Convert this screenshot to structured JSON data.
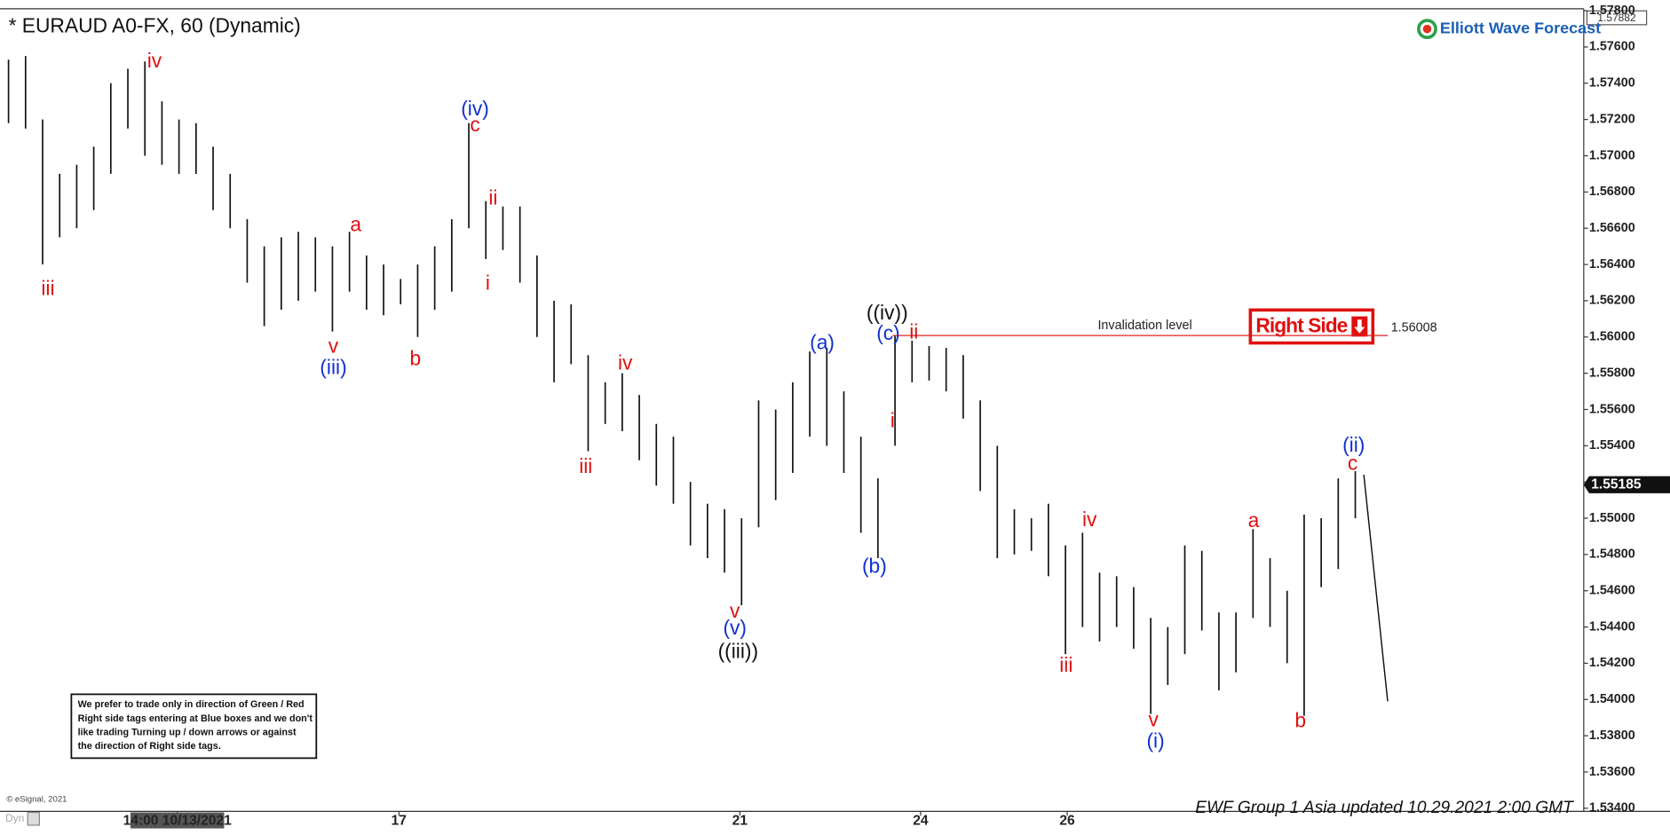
{
  "chart_data": {
    "type": "ohlc",
    "title": "* EURAUD A0-FX, 60 (Dynamic)",
    "logo": "Elliott Wave Forecast",
    "top_price_label": "1.57882",
    "ohlc": {
      "color": "#111111",
      "x": [
        0,
        1,
        2,
        3,
        4,
        5,
        6,
        7,
        8,
        9,
        10,
        11,
        12,
        13,
        14,
        15,
        16,
        17,
        18,
        19,
        20,
        21,
        22,
        23,
        24,
        25,
        26,
        27,
        28,
        29,
        30,
        31,
        32,
        33,
        34,
        35,
        36,
        37,
        38,
        39,
        40,
        41,
        42,
        43,
        44,
        45,
        46,
        47,
        48,
        49,
        50,
        51,
        52,
        53,
        54,
        55,
        56,
        57,
        58,
        59,
        60,
        61,
        62,
        63,
        64,
        65,
        66,
        67,
        68,
        69,
        70,
        71,
        72,
        73,
        74,
        75,
        76,
        77,
        78,
        79
      ],
      "high": [
        1.5753,
        1.5755,
        1.572,
        1.569,
        1.5695,
        1.5705,
        1.574,
        1.5748,
        1.5752,
        1.573,
        1.572,
        1.5718,
        1.5705,
        1.569,
        1.5665,
        1.565,
        1.5655,
        1.5658,
        1.5655,
        1.565,
        1.5658,
        1.5645,
        1.564,
        1.5632,
        1.564,
        1.565,
        1.5665,
        1.5718,
        1.5675,
        1.5672,
        1.5672,
        1.5645,
        1.562,
        1.5618,
        1.559,
        1.5575,
        1.558,
        1.5568,
        1.5552,
        1.5545,
        1.552,
        1.5508,
        1.5505,
        1.55,
        1.5565,
        1.556,
        1.5575,
        1.5592,
        1.5594,
        1.557,
        1.5545,
        1.5522,
        1.5601,
        1.5598,
        1.5595,
        1.5594,
        1.559,
        1.5565,
        1.554,
        1.5505,
        1.55,
        1.5508,
        1.5485,
        1.5492,
        1.547,
        1.5468,
        1.5462,
        1.5445,
        1.544,
        1.5485,
        1.5482,
        1.5448,
        1.5448,
        1.5494,
        1.5478,
        1.546,
        1.5502,
        1.55,
        1.5522,
        1.5526
      ],
      "low": [
        1.5718,
        1.5715,
        1.564,
        1.5655,
        1.566,
        1.567,
        1.569,
        1.5715,
        1.57,
        1.5695,
        1.569,
        1.569,
        1.567,
        1.566,
        1.563,
        1.5606,
        1.5615,
        1.562,
        1.5625,
        1.5603,
        1.5625,
        1.5615,
        1.5612,
        1.5618,
        1.56,
        1.5615,
        1.5625,
        1.566,
        1.5643,
        1.5648,
        1.563,
        1.56,
        1.5575,
        1.5585,
        1.5537,
        1.5552,
        1.5548,
        1.5532,
        1.5518,
        1.5508,
        1.5485,
        1.5478,
        1.547,
        1.5452,
        1.5495,
        1.551,
        1.5525,
        1.5545,
        1.554,
        1.5525,
        1.5492,
        1.5478,
        1.554,
        1.5575,
        1.5576,
        1.557,
        1.5555,
        1.5515,
        1.5478,
        1.548,
        1.5482,
        1.5468,
        1.5425,
        1.544,
        1.5432,
        1.544,
        1.5428,
        1.5392,
        1.5408,
        1.5425,
        1.5438,
        1.5405,
        1.5415,
        1.5445,
        1.544,
        1.542,
        1.5391,
        1.5462,
        1.5472,
        1.55
      ]
    },
    "projection": {
      "color": "#111111",
      "x": [
        79.5,
        80.9
      ],
      "y": [
        1.5524,
        1.5399
      ]
    },
    "xlim": [
      -0.5,
      92.4
    ],
    "ylim": [
      1.533945,
      1.57811
    ],
    "xticks": [
      {
        "value": 9.9,
        "label": "14:00 10/13/2021"
      },
      {
        "value": 22.9,
        "label": "17"
      },
      {
        "value": 42.9,
        "label": "21"
      },
      {
        "value": 53.5,
        "label": "24"
      },
      {
        "value": 62.1,
        "label": "26"
      }
    ],
    "yticks": [
      {
        "value": 1.534,
        "label": "1.53400"
      },
      {
        "value": 1.536,
        "label": "1.53600"
      },
      {
        "value": 1.538,
        "label": "1.53800"
      },
      {
        "value": 1.54,
        "label": "1.54000"
      },
      {
        "value": 1.542,
        "label": "1.54200"
      },
      {
        "value": 1.544,
        "label": "1.54400"
      },
      {
        "value": 1.546,
        "label": "1.54600"
      },
      {
        "value": 1.548,
        "label": "1.54800"
      },
      {
        "value": 1.55,
        "label": "1.55000"
      },
      {
        "value": 1.552,
        "label": "1.55200"
      },
      {
        "value": 1.554,
        "label": "1.55400"
      },
      {
        "value": 1.556,
        "label": "1.55600"
      },
      {
        "value": 1.558,
        "label": "1.55800"
      },
      {
        "value": 1.56,
        "label": "1.56000"
      },
      {
        "value": 1.562,
        "label": "1.56200"
      },
      {
        "value": 1.564,
        "label": "1.56400"
      },
      {
        "value": 1.566,
        "label": "1.56600"
      },
      {
        "value": 1.568,
        "label": "1.56800"
      },
      {
        "value": 1.57,
        "label": "1.57000"
      },
      {
        "value": 1.572,
        "label": "1.57200"
      },
      {
        "value": 1.574,
        "label": "1.57400"
      },
      {
        "value": 1.576,
        "label": "1.57600"
      },
      {
        "value": 1.578,
        "label": "1.57800"
      }
    ],
    "last_price": 1.55185,
    "invalidation": {
      "label": "Invalidation level",
      "value": 1.56008,
      "color": "#e02020"
    },
    "right_side_tag": "Right Side",
    "annotations": [
      {
        "text": "iii",
        "color": "#e01010"
      },
      {
        "text": "iv",
        "color": "#e01010"
      },
      {
        "text": "v",
        "color": "#e01010"
      },
      {
        "text": "(iii)",
        "color": "#1030d0"
      },
      {
        "text": "a",
        "color": "#e01010"
      },
      {
        "text": "b",
        "color": "#e01010"
      },
      {
        "text": "(iv)",
        "color": "#1030d0"
      },
      {
        "text": "c",
        "color": "#e01010"
      },
      {
        "text": "ii",
        "color": "#e01010"
      },
      {
        "text": "i",
        "color": "#e01010"
      },
      {
        "text": "iv",
        "color": "#e01010"
      },
      {
        "text": "iii",
        "color": "#e01010"
      },
      {
        "text": "v",
        "color": "#e01010"
      },
      {
        "text": "(v)",
        "color": "#1030d0"
      },
      {
        "text": "((iii))",
        "color": "#111111"
      },
      {
        "text": "(a)",
        "color": "#1030d0"
      },
      {
        "text": "(b)",
        "color": "#1030d0"
      },
      {
        "text": "((iv))",
        "color": "#111111"
      },
      {
        "text": "(c)",
        "color": "#1030d0"
      },
      {
        "text": "ii",
        "color": "#e01010"
      },
      {
        "text": "i",
        "color": "#e01010"
      },
      {
        "text": "iv",
        "color": "#e01010"
      },
      {
        "text": "iii",
        "color": "#e01010"
      },
      {
        "text": "v",
        "color": "#e01010"
      },
      {
        "text": "(i)",
        "color": "#1030d0"
      },
      {
        "text": "a",
        "color": "#e01010"
      },
      {
        "text": "b",
        "color": "#e01010"
      },
      {
        "text": "(ii)",
        "color": "#1030d0"
      },
      {
        "text": "c",
        "color": "#e01010"
      }
    ],
    "disclaimer": [
      "We prefer to trade only in direction of Green / Red",
      "Right side tags entering at Blue boxes and we don't",
      "like trading Turning up / down arrows or against",
      "the direction of Right side tags."
    ],
    "copyright": "© eSignal, 2021",
    "mode_label": "Dyn",
    "footer": "EWF Group 1 Asia updated 10.29.2021 2:00 GMT"
  }
}
